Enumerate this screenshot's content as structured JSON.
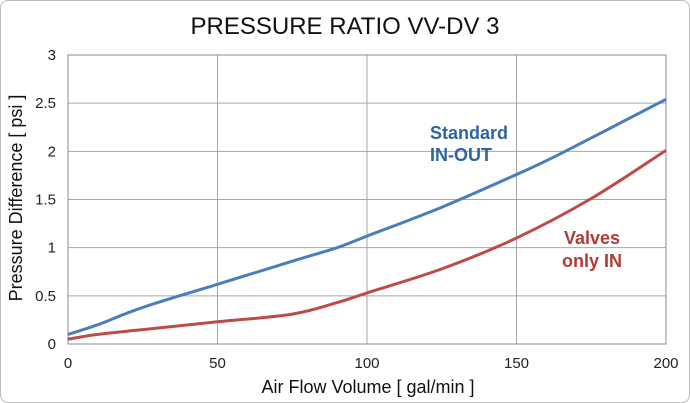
{
  "chart_data": {
    "type": "line",
    "title": "PRESSURE RATIO VV-DV 3",
    "xlabel": "Air Flow Volume [ gal/min ]",
    "ylabel": "Pressure Difference [ psi ]",
    "xlim": [
      0,
      200
    ],
    "ylim": [
      0,
      3
    ],
    "xticks": [
      "0",
      "50",
      "100",
      "150",
      "200"
    ],
    "yticks": [
      "0",
      "0.5",
      "1",
      "1.5",
      "2",
      "2.5",
      "3"
    ],
    "grid": true,
    "series": [
      {
        "name_lines": [
          "Standard",
          "IN-OUT"
        ],
        "color": "#4a7ebb",
        "x": [
          0,
          10,
          25,
          50,
          75,
          90,
          100,
          125,
          150,
          165,
          200
        ],
        "y": [
          0.1,
          0.2,
          0.38,
          0.62,
          0.86,
          1.0,
          1.12,
          1.42,
          1.76,
          1.98,
          2.54
        ]
      },
      {
        "name_lines": [
          "Valves",
          "only IN"
        ],
        "color": "#be4b48",
        "x": [
          0,
          10,
          25,
          50,
          75,
          90,
          100,
          125,
          150,
          175,
          200
        ],
        "y": [
          0.05,
          0.1,
          0.15,
          0.23,
          0.31,
          0.43,
          0.53,
          0.78,
          1.1,
          1.51,
          2.01
        ]
      }
    ]
  }
}
